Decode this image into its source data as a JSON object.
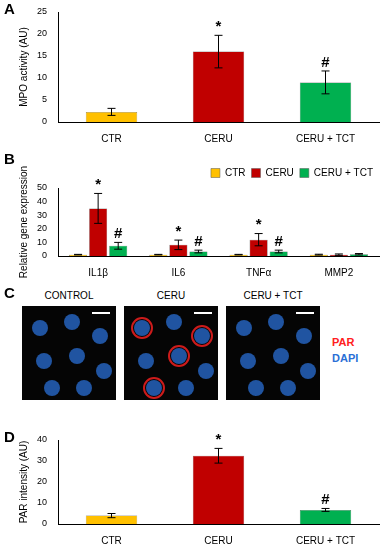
{
  "chart_data": [
    {
      "type": "bar",
      "panel_label": "A",
      "y_label": "MPO activity (AU)",
      "categories": [
        "CTR",
        "CERU",
        "CERU + TCT"
      ],
      "values": [
        2.3,
        16,
        9
      ],
      "errors": [
        0.8,
        3.7,
        2.6
      ],
      "marks": [
        null,
        "*",
        "#"
      ],
      "colors": [
        "#ffc000",
        "#c00000",
        "#00b050"
      ],
      "ylim": [
        0,
        25
      ],
      "yticks": [
        0,
        5,
        10,
        15,
        20,
        25
      ],
      "grid": false
    },
    {
      "type": "bar",
      "panel_label": "B",
      "y_label": "Relative gene expression",
      "categories": [
        "IL1β",
        "IL6",
        "TNFα",
        "MMP2"
      ],
      "series": [
        {
          "name": "CTR",
          "color": "#ffc000",
          "values": [
            1,
            1,
            1,
            1
          ],
          "errors": [
            0.2,
            0.2,
            0.2,
            0.3
          ],
          "marks": [
            null,
            null,
            null,
            null
          ]
        },
        {
          "name": "CERU",
          "color": "#c00000",
          "values": [
            35,
            8.2,
            12,
            1
          ],
          "errors": [
            11,
            3.5,
            4.5,
            0.5
          ],
          "marks": [
            "*",
            "*",
            "*",
            null
          ]
        },
        {
          "name": "CERU + TCT",
          "color": "#00b050",
          "values": [
            7.5,
            3.3,
            3.3,
            1.3
          ],
          "errors": [
            2.5,
            1,
            1,
            0.5
          ],
          "marks": [
            "#",
            "#",
            "#",
            null
          ]
        }
      ],
      "ylim": [
        0,
        50
      ],
      "yticks": [
        0,
        10,
        20,
        30,
        40,
        50
      ],
      "grid": false,
      "legend": "top right"
    },
    {
      "type": "bar",
      "panel_label": "D",
      "y_label": "PAR intensity (AU)",
      "categories": [
        "CTR",
        "CERU",
        "CERU + TCT"
      ],
      "values": [
        4,
        32.5,
        6.7
      ],
      "errors": [
        1,
        3.5,
        0.7
      ],
      "marks": [
        null,
        "*",
        "#"
      ],
      "colors": [
        "#ffc000",
        "#c00000",
        "#00b050"
      ],
      "ylim": [
        0,
        40
      ],
      "yticks": [
        0,
        10,
        20,
        30,
        40
      ],
      "grid": false
    }
  ],
  "image_panel": {
    "panel_label": "C",
    "images": [
      "CONTROL",
      "CERU",
      "CERU + TCT"
    ],
    "channels": [
      {
        "name": "PAR",
        "color": "#ff2020"
      },
      {
        "name": "DAPI",
        "color": "#2a6fd6"
      }
    ]
  }
}
